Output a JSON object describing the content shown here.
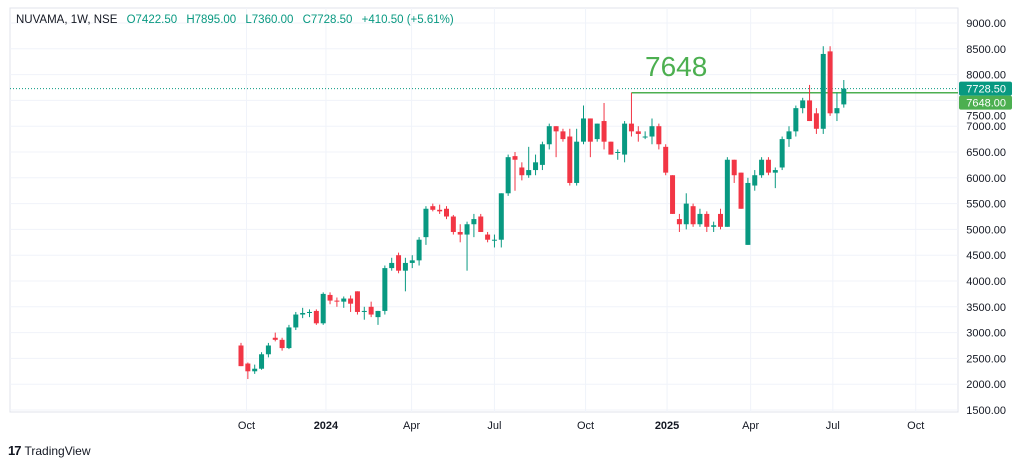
{
  "header": {
    "symbol": "NUVAMA, 1W, NSE",
    "open": "O7422.50",
    "high": "H7895.00",
    "low": "L7360.00",
    "close": "C7728.50",
    "change": "+410.50 (+5.61%)"
  },
  "footer": {
    "logo_text": "TradingView"
  },
  "colors": {
    "up": "#089981",
    "down": "#f23645",
    "level": "#4caf50",
    "grid": "#f0f3fa"
  },
  "chart_data": {
    "type": "candlestick",
    "title": "NUVAMA, 1W, NSE",
    "ylim": [
      1500,
      9000
    ],
    "y_ticks": [
      "9000.00",
      "8500.00",
      "8000.00",
      "7500.00",
      "7000.00",
      "6500.00",
      "6000.00",
      "5500.00",
      "5000.00",
      "4500.00",
      "4000.00",
      "3500.00",
      "3000.00",
      "2500.00",
      "2000.00",
      "1500.00"
    ],
    "x_ticks": [
      "Oct",
      "2024",
      "Apr",
      "Jul",
      "Oct",
      "2025",
      "Apr",
      "Jul",
      "Oct"
    ],
    "x_ticks_bold": [
      false,
      true,
      false,
      false,
      false,
      true,
      false,
      false,
      false
    ],
    "last_price_label": "7728.50",
    "level_label": "7648.00",
    "level_value": 7648,
    "last_value": 7728.5,
    "annotation": "7648",
    "ohlc": [
      [
        2750,
        2800,
        2350,
        2350
      ],
      [
        2400,
        2420,
        2100,
        2250
      ],
      [
        2250,
        2380,
        2200,
        2300
      ],
      [
        2300,
        2620,
        2280,
        2580
      ],
      [
        2580,
        2800,
        2520,
        2750
      ],
      [
        2900,
        3000,
        2830,
        2860
      ],
      [
        2860,
        2900,
        2650,
        2700
      ],
      [
        2700,
        3150,
        2680,
        3100
      ],
      [
        3100,
        3400,
        3050,
        3350
      ],
      [
        3350,
        3480,
        3280,
        3380
      ],
      [
        3380,
        3450,
        3300,
        3400
      ],
      [
        3420,
        3450,
        3150,
        3180
      ],
      [
        3180,
        3780,
        3150,
        3750
      ],
      [
        3730,
        3780,
        3550,
        3620
      ],
      [
        3620,
        3680,
        3500,
        3600
      ],
      [
        3600,
        3700,
        3480,
        3660
      ],
      [
        3660,
        3720,
        3400,
        3560
      ],
      [
        3800,
        3800,
        3350,
        3400
      ],
      [
        3400,
        3500,
        3250,
        3420
      ],
      [
        3500,
        3600,
        3300,
        3350
      ],
      [
        3300,
        3420,
        3150,
        3420
      ],
      [
        3420,
        4300,
        3350,
        4250
      ],
      [
        4250,
        4450,
        4200,
        4350
      ],
      [
        4500,
        4550,
        4150,
        4200
      ],
      [
        4200,
        4450,
        3800,
        4350
      ],
      [
        4350,
        4500,
        4250,
        4400
      ],
      [
        4400,
        4850,
        4300,
        4800
      ],
      [
        4850,
        5450,
        4700,
        5400
      ],
      [
        5450,
        5500,
        5350,
        5380
      ],
      [
        5380,
        5480,
        5300,
        5350
      ],
      [
        5400,
        5450,
        5200,
        5250
      ],
      [
        5250,
        5280,
        4900,
        4950
      ],
      [
        4950,
        5100,
        4750,
        4900
      ],
      [
        4900,
        5150,
        4200,
        5100
      ],
      [
        5100,
        5300,
        4850,
        5200
      ],
      [
        5250,
        5300,
        4950,
        4950
      ],
      [
        4900,
        4950,
        4750,
        4800
      ],
      [
        4800,
        4900,
        4650,
        4800
      ],
      [
        4800,
        5700,
        4650,
        5700
      ],
      [
        5700,
        6450,
        5650,
        6400
      ],
      [
        6420,
        6500,
        5750,
        6350
      ],
      [
        6200,
        6300,
        5950,
        6050
      ],
      [
        6050,
        6600,
        6000,
        6150
      ],
      [
        6150,
        6450,
        6050,
        6300
      ],
      [
        6250,
        6700,
        6150,
        6650
      ],
      [
        6650,
        7050,
        6550,
        7000
      ],
      [
        7000,
        7000,
        6400,
        6900
      ],
      [
        6900,
        6950,
        6700,
        6750
      ],
      [
        6800,
        6950,
        5850,
        5900
      ],
      [
        5900,
        6950,
        5850,
        6700
      ],
      [
        6700,
        7400,
        6650,
        7150
      ],
      [
        7150,
        7150,
        6400,
        6700
      ],
      [
        6750,
        7050,
        6700,
        7050
      ],
      [
        7100,
        7450,
        6550,
        6700
      ],
      [
        6700,
        6700,
        6450,
        6450
      ],
      [
        6500,
        6550,
        6350,
        6500
      ],
      [
        6450,
        7100,
        6300,
        7050
      ],
      [
        7050,
        7648,
        6800,
        6900
      ],
      [
        6900,
        7000,
        6700,
        6850
      ],
      [
        6800,
        6900,
        6750,
        6800
      ],
      [
        6800,
        7150,
        6650,
        7000
      ],
      [
        7000,
        7050,
        6550,
        6650
      ],
      [
        6600,
        6650,
        6050,
        6100
      ],
      [
        6050,
        6050,
        5300,
        5300
      ],
      [
        5200,
        5300,
        4950,
        5100
      ],
      [
        5100,
        5700,
        5000,
        5500
      ],
      [
        5450,
        5500,
        5050,
        5100
      ],
      [
        5100,
        5400,
        5050,
        5300
      ],
      [
        5300,
        5350,
        4950,
        5050
      ],
      [
        5050,
        5150,
        4950,
        5080
      ],
      [
        5300,
        5400,
        5000,
        5050
      ],
      [
        5050,
        6400,
        5050,
        6350
      ],
      [
        6350,
        6350,
        5900,
        6050
      ],
      [
        6100,
        6100,
        5400,
        5400
      ],
      [
        4700,
        6000,
        4700,
        5900
      ],
      [
        5850,
        6150,
        5750,
        6050
      ],
      [
        6050,
        6400,
        6000,
        6350
      ],
      [
        6350,
        6400,
        6050,
        6100
      ],
      [
        6100,
        6200,
        5800,
        6150
      ],
      [
        6200,
        6800,
        6150,
        6750
      ],
      [
        6750,
        7000,
        6600,
        6900
      ],
      [
        6900,
        7400,
        6800,
        7350
      ],
      [
        7350,
        7550,
        7250,
        7500
      ],
      [
        7500,
        7800,
        7100,
        7100
      ],
      [
        7250,
        7350,
        6850,
        6950
      ],
      [
        6950,
        8550,
        6850,
        8400
      ],
      [
        8450,
        8550,
        7200,
        7250
      ],
      [
        7250,
        7650,
        7100,
        7350
      ],
      [
        7422.5,
        7895,
        7360,
        7728.5
      ]
    ]
  }
}
